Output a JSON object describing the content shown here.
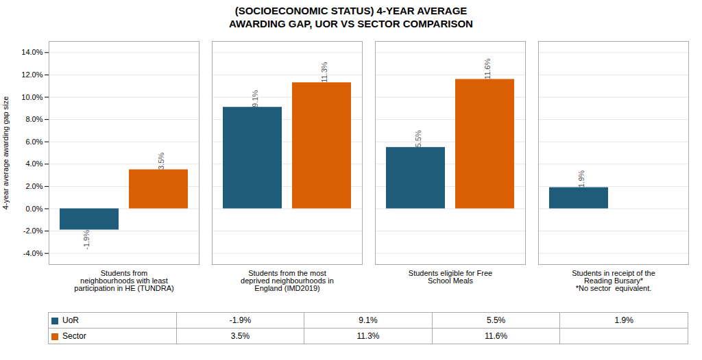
{
  "chart_data": {
    "type": "bar",
    "title": "(SOCIOECONOMIC STATUS) 4-YEAR AVERAGE\nAWARDING GAP, UOR VS SECTOR COMPARISON",
    "ylabel": "4-year average awarding gap size",
    "categories": [
      "Students from\nneighbourhoods with least\nparticipation in HE (TUNDRA)",
      "Students from the most\ndeprived neighbourhoods in\nEngland (IMD2019)",
      "Students eligible for Free\nSchool Meals",
      "Students in receipt of the\nReading Bursary*\n*No sector  equivalent."
    ],
    "series": [
      {
        "name": "UoR",
        "color": "#1f5c7a",
        "values": [
          -1.9,
          9.1,
          5.5,
          1.9
        ],
        "value_labels": [
          "-1.9%",
          "9.1%",
          "5.5%",
          "1.9%"
        ]
      },
      {
        "name": "Sector",
        "color": "#d95f02",
        "values": [
          3.5,
          11.3,
          11.6,
          null
        ],
        "value_labels": [
          "3.5%",
          "11.3%",
          "11.6%",
          null
        ]
      }
    ],
    "ylim": [
      -5.0,
      15.0
    ],
    "yticks": [
      {
        "value": -4.0,
        "label": "-4.0%"
      },
      {
        "value": -2.0,
        "label": "-2.0%"
      },
      {
        "value": 0.0,
        "label": "0.0%"
      },
      {
        "value": 2.0,
        "label": "2.0%"
      },
      {
        "value": 4.0,
        "label": "4.0%"
      },
      {
        "value": 6.0,
        "label": "6.0%"
      },
      {
        "value": 8.0,
        "label": "8.0%"
      },
      {
        "value": 10.0,
        "label": "10.0%"
      },
      {
        "value": 12.0,
        "label": "12.0%"
      },
      {
        "value": 14.0,
        "label": "14.0%"
      }
    ],
    "grid": true,
    "data_labels": true,
    "legend": "bottom"
  }
}
